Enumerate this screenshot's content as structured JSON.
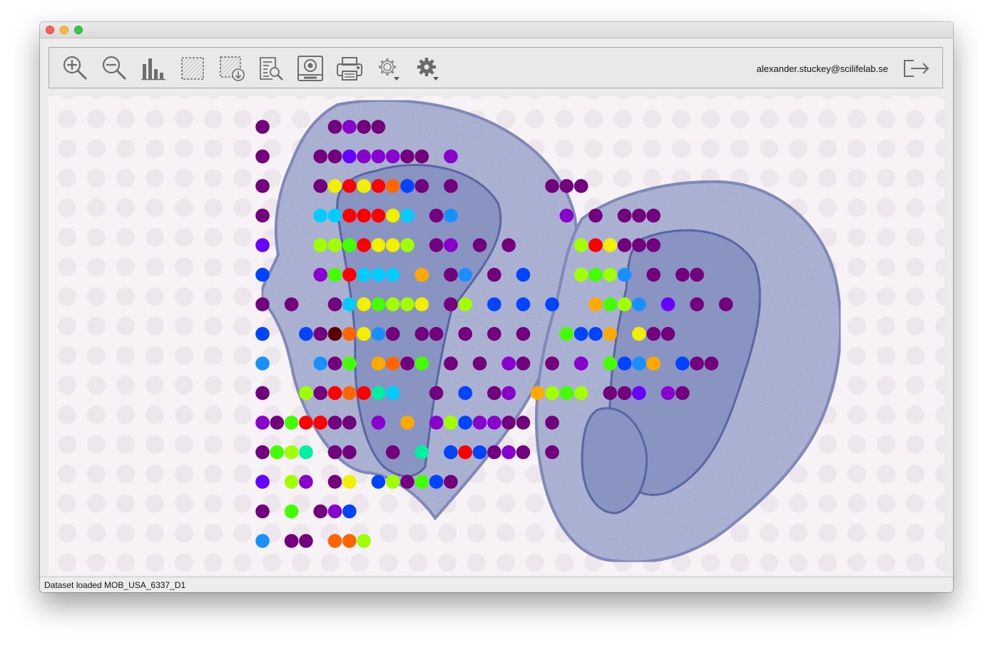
{
  "window": {
    "traffic_lights": {
      "close": "#fc605c",
      "minimize": "#fdbc40",
      "maximize": "#34c84a"
    }
  },
  "toolbar": {
    "buttons": [
      {
        "icon": "zoom-in-icon"
      },
      {
        "icon": "zoom-out-icon"
      },
      {
        "icon": "histogram-icon"
      },
      {
        "icon": "selection-icon"
      },
      {
        "icon": "export-selection-icon"
      },
      {
        "icon": "report-search-icon"
      },
      {
        "icon": "save-image-icon"
      },
      {
        "icon": "print-icon"
      },
      {
        "icon": "settings-menu-icon"
      },
      {
        "icon": "settings-icon"
      }
    ],
    "user_email": "alexander.stuckey@scilifelab.se",
    "logout_icon": "logout-icon"
  },
  "status_bar": {
    "message": "Dataset loaded MOB_USA_6337_D1"
  },
  "colors": {
    "v": "#72007c",
    "p": "#8800cc",
    "i": "#6600ff",
    "b": "#0044ff",
    "a": "#1a90ff",
    "c": "#00ccff",
    "t": "#00f0a0",
    "g": "#44ff00",
    "l": "#a0ff00",
    "y": "#f0f000",
    "o": "#ffaa00",
    "n": "#ff6600",
    "r": "#ff0000",
    "k": "#5a0000"
  },
  "spots": {
    "rows": [
      {
        "row": 0,
        "cells": "v....vpvv"
      },
      {
        "row": 1,
        "cells": "v...vvipppvv.p"
      },
      {
        "row": 2,
        "cells": "v...vyryrnbv.v......vvv"
      },
      {
        "row": 3,
        "cells": "v...ccrrryc.va.......p.v.vvv"
      },
      {
        "row": 4,
        "cells": "i...llgryyl.vp.v.v....lryvvv"
      },
      {
        "row": 5,
        "cells": "b...pgrccc.o.va.v.b...lgla.v.vv"
      },
      {
        "row": 6,
        "cells": "v.v..vcyglly.vl.b.b.b..ogla.i.v.v"
      },
      {
        "row": 7,
        "cells": "b..bvknyav.vv.v.v.v..gbbo.yvv"
      },
      {
        "row": 8,
        "cells": "a...avg.onvg.v.v.pv.v.p.gbao.bvv"
      },
      {
        "row": 9,
        "cells": "v..lvrnrtc..v.b.vp.olgl.vvi.pv"
      },
      {
        "row": 10,
        "cells": "pvgrrvv.p.o.plbppvv.v"
      },
      {
        "row": 11,
        "cells": "vglt.vv..v.t.brbvpv.v"
      },
      {
        "row": 12,
        "cells": "i.lp.vy.blvgbv"
      },
      {
        "row": 13,
        "cells": "v.g.vpb"
      },
      {
        "row": 14,
        "cells": "a.vv.nnl"
      }
    ]
  }
}
